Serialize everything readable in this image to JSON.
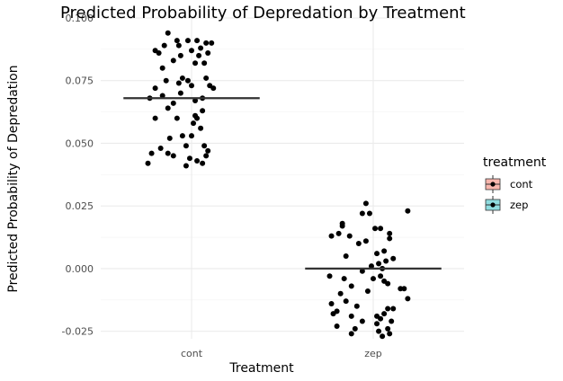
{
  "chart_data": {
    "type": "scatter",
    "subtype": "jitter-with-mean-line",
    "title": "Predicted Probability of Depredation by Treatment",
    "xlabel": "Treatment",
    "ylabel": "Predicted Probability of Depredation",
    "categories": [
      "cont",
      "zep"
    ],
    "ylim": [
      -0.028,
      0.1
    ],
    "yticks": [
      -0.025,
      0.0,
      0.025,
      0.05,
      0.075,
      0.1
    ],
    "ytick_labels": [
      "-0.025",
      "0.000",
      "0.025",
      "0.050",
      "0.075",
      "0.100"
    ],
    "grid": true,
    "legend": {
      "title": "treatment",
      "position": "right",
      "entries": [
        {
          "label": "cont",
          "color": "#f8b6ad"
        },
        {
          "label": "zep",
          "color": "#8fdde0"
        }
      ]
    },
    "colors": {
      "points": "#000000",
      "mean_line": "#333333"
    },
    "series": [
      {
        "category": "cont",
        "mean": 0.068,
        "points": [
          [
            -0.13,
            0.094
          ],
          [
            -0.08,
            0.091
          ],
          [
            -0.02,
            0.091
          ],
          [
            0.03,
            0.091
          ],
          [
            0.08,
            0.09
          ],
          [
            0.11,
            0.09
          ],
          [
            -0.15,
            0.089
          ],
          [
            -0.07,
            0.089
          ],
          [
            0.05,
            0.088
          ],
          [
            -0.2,
            0.087
          ],
          [
            0.0,
            0.087
          ],
          [
            -0.18,
            0.086
          ],
          [
            0.09,
            0.086
          ],
          [
            -0.06,
            0.085
          ],
          [
            0.04,
            0.085
          ],
          [
            -0.1,
            0.083
          ],
          [
            0.02,
            0.082
          ],
          [
            0.07,
            0.082
          ],
          [
            -0.16,
            0.08
          ],
          [
            0.08,
            0.076
          ],
          [
            -0.05,
            0.076
          ],
          [
            -0.14,
            0.075
          ],
          [
            -0.02,
            0.075
          ],
          [
            -0.07,
            0.074
          ],
          [
            0.0,
            0.073
          ],
          [
            0.1,
            0.073
          ],
          [
            -0.2,
            0.072
          ],
          [
            0.12,
            0.072
          ],
          [
            -0.06,
            0.07
          ],
          [
            -0.16,
            0.069
          ],
          [
            0.06,
            0.068
          ],
          [
            -0.23,
            0.068
          ],
          [
            0.02,
            0.067
          ],
          [
            -0.1,
            0.066
          ],
          [
            -0.13,
            0.064
          ],
          [
            0.06,
            0.063
          ],
          [
            0.02,
            0.061
          ],
          [
            -0.2,
            0.06
          ],
          [
            -0.08,
            0.06
          ],
          [
            0.03,
            0.06
          ],
          [
            0.01,
            0.058
          ],
          [
            0.05,
            0.056
          ],
          [
            -0.05,
            0.053
          ],
          [
            0.0,
            0.053
          ],
          [
            -0.12,
            0.052
          ],
          [
            0.07,
            0.049
          ],
          [
            -0.03,
            0.049
          ],
          [
            -0.17,
            0.048
          ],
          [
            0.09,
            0.047
          ],
          [
            -0.22,
            0.046
          ],
          [
            -0.13,
            0.046
          ],
          [
            0.08,
            0.045
          ],
          [
            -0.1,
            0.045
          ],
          [
            -0.01,
            0.044
          ],
          [
            0.03,
            0.043
          ],
          [
            -0.24,
            0.042
          ],
          [
            0.06,
            0.042
          ],
          [
            -0.03,
            0.041
          ]
        ]
      },
      {
        "category": "zep",
        "mean": 0.0,
        "points": [
          [
            -0.04,
            0.026
          ],
          [
            0.19,
            0.023
          ],
          [
            -0.06,
            0.022
          ],
          [
            -0.02,
            0.022
          ],
          [
            -0.17,
            0.018
          ],
          [
            -0.17,
            0.017
          ],
          [
            0.01,
            0.016
          ],
          [
            0.04,
            0.016
          ],
          [
            -0.19,
            0.014
          ],
          [
            0.09,
            0.014
          ],
          [
            -0.23,
            0.013
          ],
          [
            -0.13,
            0.013
          ],
          [
            0.09,
            0.012
          ],
          [
            -0.04,
            0.011
          ],
          [
            -0.08,
            0.01
          ],
          [
            0.06,
            0.007
          ],
          [
            0.02,
            0.006
          ],
          [
            -0.15,
            0.005
          ],
          [
            0.11,
            0.004
          ],
          [
            0.07,
            0.003
          ],
          [
            0.03,
            0.002
          ],
          [
            -0.01,
            0.001
          ],
          [
            0.05,
            0.0
          ],
          [
            -0.06,
            -0.001
          ],
          [
            -0.24,
            -0.003
          ],
          [
            0.04,
            -0.003
          ],
          [
            0.0,
            -0.004
          ],
          [
            -0.16,
            -0.004
          ],
          [
            0.06,
            -0.005
          ],
          [
            0.08,
            -0.006
          ],
          [
            -0.12,
            -0.007
          ],
          [
            0.15,
            -0.008
          ],
          [
            0.17,
            -0.008
          ],
          [
            -0.03,
            -0.009
          ],
          [
            -0.18,
            -0.01
          ],
          [
            0.19,
            -0.012
          ],
          [
            -0.15,
            -0.013
          ],
          [
            -0.23,
            -0.014
          ],
          [
            -0.09,
            -0.015
          ],
          [
            0.08,
            -0.016
          ],
          [
            0.11,
            -0.016
          ],
          [
            -0.2,
            -0.017
          ],
          [
            0.06,
            -0.018
          ],
          [
            -0.22,
            -0.018
          ],
          [
            0.02,
            -0.019
          ],
          [
            -0.12,
            -0.019
          ],
          [
            0.04,
            -0.02
          ],
          [
            -0.06,
            -0.021
          ],
          [
            0.1,
            -0.021
          ],
          [
            0.02,
            -0.022
          ],
          [
            -0.2,
            -0.023
          ],
          [
            0.08,
            -0.024
          ],
          [
            -0.1,
            -0.024
          ],
          [
            0.03,
            -0.025
          ],
          [
            -0.12,
            -0.026
          ],
          [
            0.09,
            -0.026
          ],
          [
            0.05,
            -0.027
          ]
        ]
      }
    ]
  }
}
